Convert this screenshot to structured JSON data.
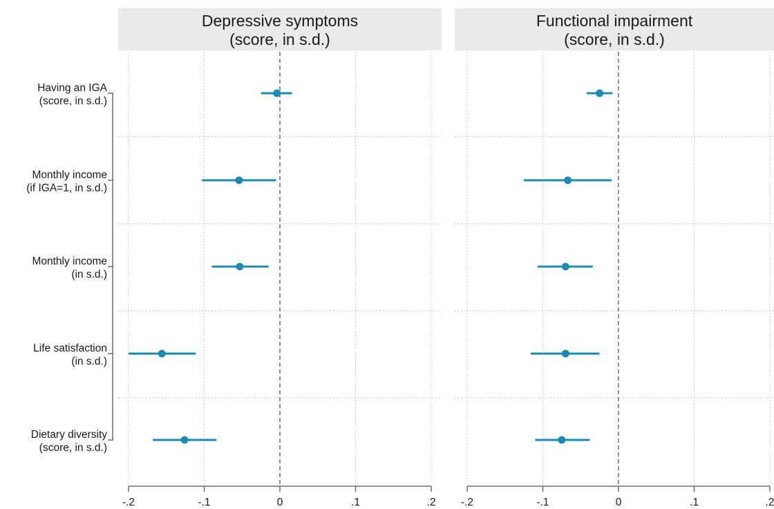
{
  "chart_data": {
    "type": "scatter",
    "variant": "coefficient-plot-with-confidence-intervals",
    "rows": [
      [
        "Having an IGA",
        "(score, in s.d.)"
      ],
      [
        "Monthly income",
        "(if IGA=1, in s.d.)"
      ],
      [
        "Monthly income",
        "(in s.d.)"
      ],
      [
        "Life satisfaction",
        "(in s.d.)"
      ],
      [
        "Dietary diversity",
        "(score, in s.d.)"
      ]
    ],
    "xlim": [
      -0.2,
      0.2
    ],
    "xticks": [
      -0.2,
      -0.1,
      0,
      0.1,
      0.2
    ],
    "xtick_labels": [
      "-.2",
      "-.1",
      "0",
      ".1",
      ".2"
    ],
    "reference_line_x": 0,
    "grid": true,
    "marker_color": "#1a8bb4",
    "panels": [
      {
        "title": [
          "Depressive symptoms",
          "(score, in s.d.)"
        ],
        "points": [
          {
            "est": -0.004,
            "lo": -0.025,
            "hi": 0.016
          },
          {
            "est": -0.054,
            "lo": -0.103,
            "hi": -0.005
          },
          {
            "est": -0.053,
            "lo": -0.09,
            "hi": -0.015
          },
          {
            "est": -0.156,
            "lo": -0.2,
            "hi": -0.111
          },
          {
            "est": -0.126,
            "lo": -0.168,
            "hi": -0.084
          }
        ]
      },
      {
        "title": [
          "Functional impairment",
          "(score, in s.d.)"
        ],
        "points": [
          {
            "est": -0.025,
            "lo": -0.042,
            "hi": -0.008
          },
          {
            "est": -0.067,
            "lo": -0.125,
            "hi": -0.009
          },
          {
            "est": -0.07,
            "lo": -0.107,
            "hi": -0.034
          },
          {
            "est": -0.07,
            "lo": -0.116,
            "hi": -0.025
          },
          {
            "est": -0.075,
            "lo": -0.11,
            "hi": -0.038
          }
        ]
      }
    ]
  }
}
